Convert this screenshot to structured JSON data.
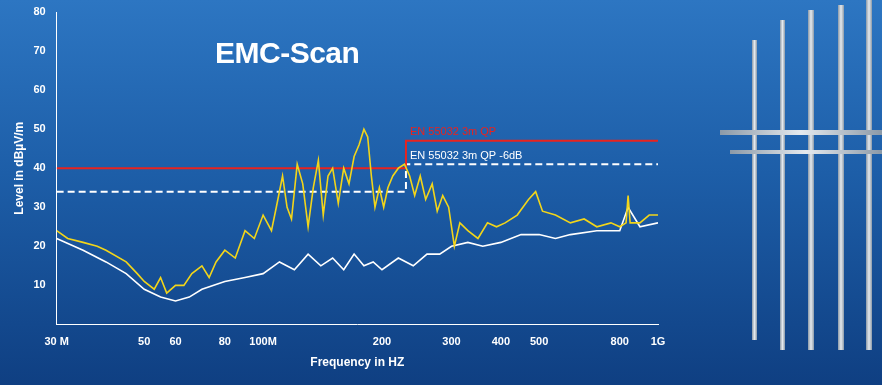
{
  "chart_data": {
    "type": "line",
    "title": "EMC-Scan",
    "x_label": "Frequency in HZ",
    "y_label": "Level in dBµV/m",
    "log": "x",
    "grid": false,
    "xlim": [
      30000000,
      1000000000
    ],
    "xticks": [
      {
        "value": 30000000,
        "label": "30 M"
      },
      {
        "value": 50000000,
        "label": "50"
      },
      {
        "value": 60000000,
        "label": "60"
      },
      {
        "value": 80000000,
        "label": "80"
      },
      {
        "value": 100000000,
        "label": "100M"
      },
      {
        "value": 200000000,
        "label": "200"
      },
      {
        "value": 300000000,
        "label": "300"
      },
      {
        "value": 400000000,
        "label": "400"
      },
      {
        "value": 500000000,
        "label": "500"
      },
      {
        "value": 800000000,
        "label": "800"
      },
      {
        "value": 1000000000,
        "label": "1G"
      }
    ],
    "ylim": [
      0,
      80
    ],
    "yticks": [
      10,
      20,
      30,
      40,
      50,
      60,
      70,
      80
    ],
    "series": [
      {
        "color": "#f2d51a",
        "line_style": "solid",
        "x": [
          30000000,
          32000000,
          35000000,
          38000000,
          40000000,
          45000000,
          48000000,
          50000000,
          53000000,
          55000000,
          57000000,
          60000000,
          63000000,
          66000000,
          70000000,
          73000000,
          76000000,
          80000000,
          85000000,
          90000000,
          95000000,
          100000000,
          105000000,
          108000000,
          112000000,
          115000000,
          118000000,
          122000000,
          126000000,
          130000000,
          134000000,
          138000000,
          142000000,
          146000000,
          150000000,
          155000000,
          160000000,
          165000000,
          170000000,
          175000000,
          180000000,
          184000000,
          188000000,
          192000000,
          197000000,
          202000000,
          207000000,
          213000000,
          220000000,
          228000000,
          235000000,
          242000000,
          250000000,
          258000000,
          268000000,
          276000000,
          285000000,
          295000000,
          305000000,
          315000000,
          330000000,
          350000000,
          370000000,
          390000000,
          410000000,
          440000000,
          470000000,
          490000000,
          510000000,
          550000000,
          600000000,
          650000000,
          700000000,
          760000000,
          800000000,
          830000000,
          840000000,
          850000000,
          900000000,
          950000000,
          1000000000
        ],
        "values": [
          24,
          22,
          21,
          20,
          19,
          16,
          13,
          11,
          9,
          12,
          8,
          10,
          10,
          13,
          15,
          12,
          16,
          19,
          17,
          24,
          22,
          28,
          24,
          30,
          38,
          30,
          27,
          41,
          36,
          25,
          35,
          42,
          28,
          38,
          40,
          31,
          40,
          36,
          43,
          46,
          50,
          48,
          38,
          30,
          35,
          30,
          35,
          38,
          40,
          41,
          38,
          33,
          38,
          32,
          36,
          29,
          33,
          30,
          20,
          26,
          24,
          22,
          26,
          25,
          26,
          28,
          32,
          34,
          29,
          28,
          26,
          27,
          25,
          26,
          25,
          26,
          33,
          26,
          26,
          28,
          28
        ]
      },
      {
        "color": "#ffffff",
        "line_style": "solid",
        "x": [
          30000000,
          35000000,
          40000000,
          45000000,
          50000000,
          55000000,
          60000000,
          65000000,
          70000000,
          80000000,
          90000000,
          100000000,
          110000000,
          120000000,
          130000000,
          140000000,
          150000000,
          160000000,
          170000000,
          180000000,
          190000000,
          200000000,
          220000000,
          240000000,
          260000000,
          280000000,
          300000000,
          330000000,
          360000000,
          400000000,
          450000000,
          500000000,
          550000000,
          600000000,
          700000000,
          800000000,
          840000000,
          900000000,
          1000000000
        ],
        "values": [
          22,
          19,
          16,
          13,
          9,
          7,
          6,
          7,
          9,
          11,
          12,
          13,
          16,
          14,
          18,
          15,
          17,
          14,
          18,
          15,
          16,
          14,
          17,
          15,
          18,
          18,
          20,
          21,
          20,
          21,
          23,
          23,
          22,
          23,
          24,
          24,
          30,
          25,
          26
        ]
      },
      {
        "name": "EN 55032 3m QP",
        "color": "#e8231f",
        "line_style": "solid",
        "x": [
          30000000,
          230000000,
          230000000,
          1000000000
        ],
        "values": [
          40,
          40,
          47,
          47
        ]
      },
      {
        "name": "EN 55032 3m QP -6dB",
        "color": "#ffffff",
        "line_style": "dashed",
        "x": [
          30000000,
          230000000,
          230000000,
          1000000000
        ],
        "values": [
          34,
          34,
          41,
          41
        ]
      }
    ]
  }
}
